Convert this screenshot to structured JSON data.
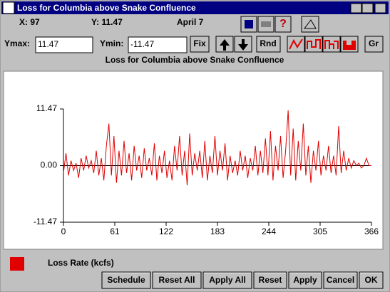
{
  "window": {
    "title": "Loss for Columbia above Snake Confluence"
  },
  "status": {
    "x": "X: 97",
    "y": "Y: 11.47",
    "date": "April 7"
  },
  "controls": {
    "ymax_label": "Ymax:",
    "ymax": "11.47",
    "ymin_label": "Ymin:",
    "ymin": "-11.47",
    "fix": "Fix",
    "rnd": "Rnd",
    "gr": "Gr"
  },
  "chart_data": {
    "type": "line",
    "title": "Loss for Columbia above Snake Confluence",
    "x": [
      0,
      3,
      6,
      9,
      12,
      15,
      18,
      21,
      24,
      27,
      30,
      33,
      36,
      39,
      42,
      45,
      48,
      51,
      54,
      57,
      60,
      63,
      66,
      69,
      72,
      75,
      78,
      81,
      84,
      87,
      90,
      93,
      96,
      99,
      102,
      105,
      108,
      111,
      114,
      117,
      120,
      123,
      126,
      129,
      132,
      135,
      138,
      141,
      144,
      147,
      150,
      153,
      156,
      159,
      162,
      165,
      168,
      171,
      174,
      177,
      180,
      183,
      186,
      189,
      192,
      195,
      198,
      201,
      204,
      207,
      210,
      213,
      216,
      219,
      222,
      225,
      228,
      231,
      234,
      237,
      240,
      243,
      246,
      249,
      252,
      255,
      258,
      261,
      264,
      267,
      270,
      273,
      276,
      279,
      282,
      285,
      288,
      291,
      294,
      297,
      300,
      303,
      306,
      309,
      312,
      315,
      318,
      321,
      324,
      327,
      330,
      333,
      336,
      339,
      342,
      345,
      348,
      351,
      354,
      357,
      360,
      363,
      366
    ],
    "series": [
      {
        "name": "Loss Rate (kcfs)",
        "color": "#e00000",
        "values": [
          -1.5,
          2.5,
          -2,
          1,
          -1,
          0.5,
          -2.5,
          1.5,
          -1,
          2,
          -0.5,
          1,
          -1.5,
          3,
          -2,
          1.5,
          -3,
          4,
          8.5,
          -2,
          6,
          -3.5,
          3,
          -2,
          5,
          -1.5,
          2.5,
          -3,
          4,
          -1,
          2,
          -2.5,
          3.5,
          -1,
          1.5,
          -2,
          4.5,
          -3,
          2,
          -1.5,
          3,
          -2.5,
          1,
          -3,
          4,
          -1,
          6,
          -2,
          3,
          -4,
          6.5,
          -2,
          2.5,
          -1,
          3,
          -2.5,
          5,
          -3,
          2,
          -1.5,
          6,
          -2,
          3,
          -1,
          4.5,
          -3,
          2,
          -1.5,
          1,
          -2,
          3,
          -1,
          2,
          -2.5,
          1.5,
          -1,
          4,
          -2,
          3,
          -1.5,
          5.5,
          -2,
          7,
          -3,
          4,
          -1,
          6,
          -2.5,
          3,
          11.2,
          -2,
          7.5,
          -3,
          5,
          -1,
          8.5,
          -2,
          4,
          -3.5,
          3,
          -1,
          5,
          -2,
          2,
          -1,
          4,
          -1.5,
          2,
          -2,
          8,
          -1.5,
          3,
          -1,
          1.5,
          -0.5,
          1,
          0,
          0.5,
          -0.5,
          0,
          1.5,
          0,
          0
        ]
      }
    ],
    "xlim": [
      0,
      366
    ],
    "xticks": [
      0,
      61,
      122,
      183,
      244,
      305,
      366
    ],
    "ylim": [
      -11.47,
      11.47
    ],
    "yticks": [
      11.47,
      {
        "value": 0,
        "label": "0.00"
      },
      -11.47
    ]
  },
  "buttons": [
    "Schedule",
    "Reset All",
    "Apply All",
    "Reset",
    "Apply",
    "Cancel",
    "OK"
  ]
}
